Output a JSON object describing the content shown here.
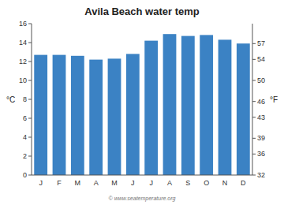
{
  "chart_data": {
    "type": "bar",
    "title": "Avila Beach water temp",
    "categories": [
      "J",
      "F",
      "M",
      "A",
      "M",
      "J",
      "J",
      "A",
      "S",
      "O",
      "N",
      "D"
    ],
    "values": [
      12.7,
      12.7,
      12.6,
      12.2,
      12.3,
      12.8,
      14.2,
      14.9,
      14.7,
      14.8,
      14.3,
      13.9
    ],
    "color": "#3b82c4",
    "ylim": [
      0,
      16
    ],
    "yticks": [
      0,
      2,
      4,
      6,
      8,
      10,
      12,
      14,
      16
    ],
    "y2lim": [
      32,
      60.8
    ],
    "y2ticks": [
      32,
      36,
      39,
      43,
      46,
      50,
      54,
      57
    ],
    "ylabel": "°C",
    "y2label": "°F",
    "grid": false,
    "annotations": [
      "© www.seatemperature.org"
    ]
  }
}
